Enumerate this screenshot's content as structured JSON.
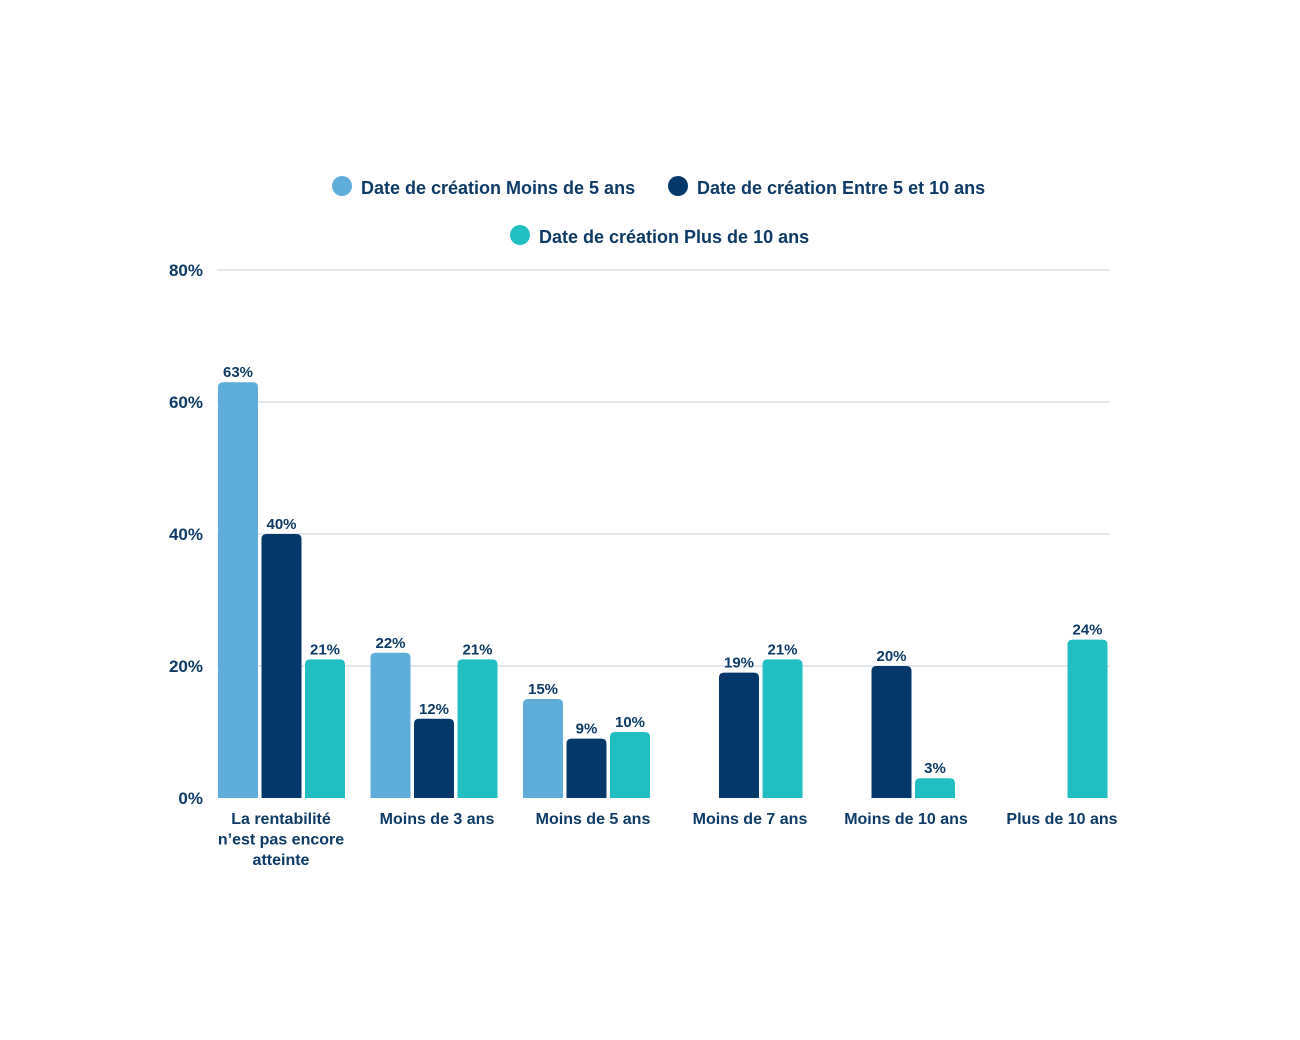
{
  "colors": {
    "series_1": "#5eaddb",
    "series_2": "#04386a",
    "series_3": "#21bfc2",
    "text": "#0d3a66",
    "grid": "#c9d1dc"
  },
  "chart_data": {
    "type": "bar",
    "title": "",
    "xlabel": "",
    "ylabel": "",
    "ylim": [
      0,
      80
    ],
    "yticks": [
      0,
      20,
      40,
      60,
      80
    ],
    "ytick_labels": [
      "0%",
      "20%",
      "40%",
      "60%",
      "80%"
    ],
    "grid": true,
    "legend_position": "top-center",
    "categories": [
      [
        "La rentabilité",
        "n’est pas encore",
        "atteinte"
      ],
      [
        "Moins de 3 ans"
      ],
      [
        "Moins de 5 ans"
      ],
      [
        "Moins de 7 ans"
      ],
      [
        "Moins de 10 ans"
      ],
      [
        "Plus de 10 ans"
      ]
    ],
    "series": [
      {
        "name": "Date de création Moins de 5 ans",
        "values": [
          63,
          22,
          15,
          null,
          null,
          null
        ],
        "labels": [
          "63%",
          "22%",
          "15%",
          null,
          null,
          null
        ]
      },
      {
        "name": "Date de création Entre 5 et 10 ans",
        "values": [
          40,
          12,
          9,
          19,
          20,
          null
        ],
        "labels": [
          "40%",
          "12%",
          "9%",
          "19%",
          "20%",
          null
        ]
      },
      {
        "name": "Date de création Plus de 10 ans",
        "values": [
          21,
          21,
          10,
          21,
          3,
          24
        ],
        "labels": [
          "21%",
          "21%",
          "10%",
          "21%",
          "3%",
          "24%"
        ]
      }
    ]
  }
}
